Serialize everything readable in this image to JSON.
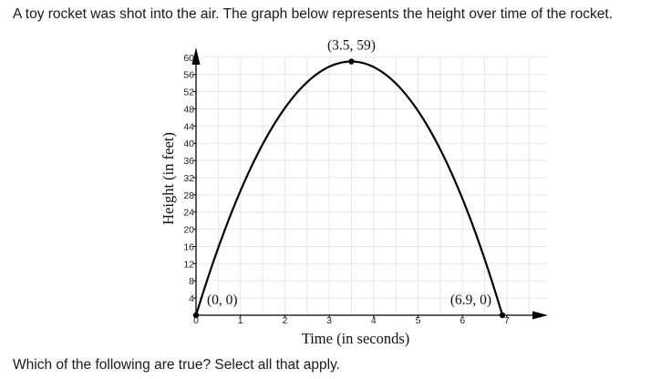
{
  "question": "A toy rocket was shot into the air. The graph below represents the height over time of the rocket.",
  "prompt": "Which of the following are true? Select all that apply.",
  "chart_data": {
    "type": "line",
    "title": "",
    "xlabel": "Time (in seconds)",
    "ylabel": "Height (in feet)",
    "xlim": [
      0,
      7.5
    ],
    "ylim": [
      0,
      60
    ],
    "xticks": [
      "0",
      "1",
      "2",
      "3",
      "4",
      "5",
      "6",
      "7"
    ],
    "yticks": [
      "4",
      "8",
      "12",
      "16",
      "20",
      "24",
      "28",
      "32",
      "36",
      "40",
      "44",
      "48",
      "52",
      "56",
      "60"
    ],
    "grid": true,
    "series": [
      {
        "x": [
          0,
          0.5,
          1,
          1.5,
          2,
          2.5,
          3,
          3.5,
          4,
          4.5,
          5,
          5.5,
          6,
          6.5,
          6.9
        ],
        "y": [
          0,
          15.8,
          28.6,
          38.8,
          47.7,
          53.6,
          57.2,
          59,
          58.6,
          56.1,
          50.5,
          41.9,
          29.9,
          15.5,
          0
        ]
      }
    ],
    "points": [
      {
        "x": 0,
        "y": 0,
        "label": "(0, 0)"
      },
      {
        "x": 3.5,
        "y": 59,
        "label": "(3.5, 59)"
      },
      {
        "x": 6.9,
        "y": 0,
        "label": "(6.9, 0)"
      }
    ],
    "colors": {
      "line": "#000000",
      "grid": "#e6e6e6"
    }
  }
}
